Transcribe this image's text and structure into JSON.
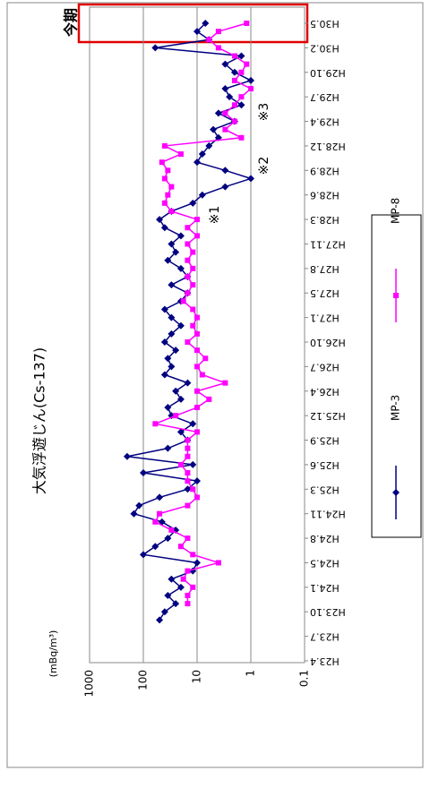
{
  "chart_data": {
    "type": "line",
    "title": "大気浮遊じん(Cs-137)",
    "y_label": "(mBq/m³)",
    "categories": [
      "H23.4",
      null,
      null,
      "H23.7",
      null,
      null,
      "H23.10",
      null,
      null,
      "H24.1",
      null,
      null,
      "H24.5",
      null,
      null,
      "H24.8",
      null,
      null,
      "H24.11",
      null,
      null,
      "H25.3",
      null,
      null,
      "H25.6",
      null,
      null,
      "H25.9",
      null,
      null,
      "H25.12",
      null,
      null,
      "H26.4",
      null,
      null,
      "H26.7",
      null,
      null,
      "H26.10",
      null,
      null,
      "H27.1",
      null,
      null,
      "H27.5",
      null,
      null,
      "H27.8",
      null,
      null,
      "H27.11",
      null,
      null,
      "H28.3",
      null,
      null,
      "H28.6",
      null,
      null,
      "H28.9",
      null,
      null,
      "H28.12",
      null,
      null,
      "H29.4",
      null,
      null,
      "H29.7",
      null,
      null,
      "H29.10",
      null,
      null,
      "H30.2",
      null,
      null,
      "H30.5"
    ],
    "series": [
      {
        "name": "MP-3",
        "color": "#000080",
        "marker": "diamond",
        "values": [
          null,
          null,
          null,
          null,
          null,
          50,
          40,
          25,
          35,
          20,
          30,
          12,
          10,
          100,
          60,
          35,
          25,
          45,
          150,
          120,
          50,
          15,
          10,
          100,
          12,
          200,
          35,
          15,
          20,
          12,
          30,
          35,
          20,
          25,
          15,
          40,
          30,
          35,
          25,
          40,
          30,
          20,
          30,
          40,
          20,
          15,
          30,
          15,
          20,
          35,
          25,
          30,
          20,
          40,
          50,
          30,
          12,
          8,
          3,
          1,
          3,
          10,
          8,
          6,
          4,
          5,
          2,
          4,
          1.5,
          2.5,
          3,
          1,
          2,
          3,
          1.5,
          60,
          6,
          10,
          7
        ]
      },
      {
        "name": "MP-8",
        "color": "#ff00ff",
        "marker": "square",
        "values": [
          null,
          null,
          null,
          null,
          null,
          null,
          null,
          15,
          15,
          12,
          18,
          15,
          4,
          12,
          20,
          15,
          30,
          60,
          50,
          15,
          10,
          12,
          15,
          15,
          20,
          15,
          15,
          15,
          10,
          60,
          25,
          10,
          6,
          10,
          3,
          8,
          10,
          7,
          10,
          15,
          10,
          12,
          10,
          12,
          18,
          15,
          12,
          15,
          12,
          15,
          12,
          15,
          10,
          15,
          10,
          30,
          40,
          35,
          30,
          40,
          35,
          45,
          20,
          40,
          1.5,
          3,
          2,
          3,
          2,
          1.5,
          1,
          2,
          1.5,
          1.2,
          2,
          4,
          6,
          4,
          1.2
        ]
      }
    ],
    "ylim": [
      0.1,
      1000
    ],
    "yticks": [
      0.1,
      1,
      10,
      100,
      1000
    ],
    "log_scale": true,
    "grid": true,
    "annotations": [
      "※1",
      "※2",
      "※3",
      "今期"
    ]
  }
}
